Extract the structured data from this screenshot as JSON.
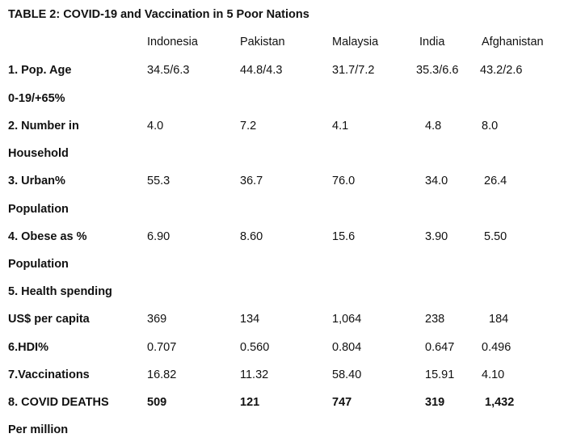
{
  "table": {
    "title": "TABLE 2: COVID-19 and Vaccination in 5 Poor Nations",
    "columns": [
      "Indonesia",
      "Pakistan",
      "Malaysia",
      "India",
      "Afghanistan"
    ],
    "rows": [
      {
        "label": "1. Pop. Age",
        "label2": "0-19/+65%",
        "values": [
          "34.5/6.3",
          "44.8/4.3",
          "31.7/7.2",
          "35.3/6.6",
          "43.2/2.6"
        ]
      },
      {
        "label": "2. Number in",
        "label2": "Household",
        "values": [
          "4.0",
          "7.2",
          "4.1",
          "4.8",
          "8.0"
        ]
      },
      {
        "label": "3. Urban%",
        "label2": "Population",
        "values": [
          "55.3",
          "36.7",
          "76.0",
          "34.0",
          "26.4"
        ]
      },
      {
        "label": "4. Obese as %",
        "label2": "Population",
        "values": [
          "6.90",
          "8.60",
          "15.6",
          "3.90",
          "5.50"
        ]
      },
      {
        "label": "5. Health spending",
        "label2": "US$ per capita",
        "values": [
          "369",
          "134",
          "1,064",
          "238",
          "184"
        ]
      },
      {
        "label": "6.HDI%",
        "values": [
          "0.707",
          "0.560",
          "0.804",
          "0.647",
          "0.496"
        ]
      },
      {
        "label": "7.Vaccinations",
        "values": [
          "16.82",
          "11.32",
          "58.40",
          "15.91",
          "4.10"
        ]
      },
      {
        "label": "8. COVID DEATHS",
        "label2": "Per million",
        "values": [
          "509",
          "121",
          "747",
          "319",
          "1,432"
        ]
      }
    ]
  }
}
